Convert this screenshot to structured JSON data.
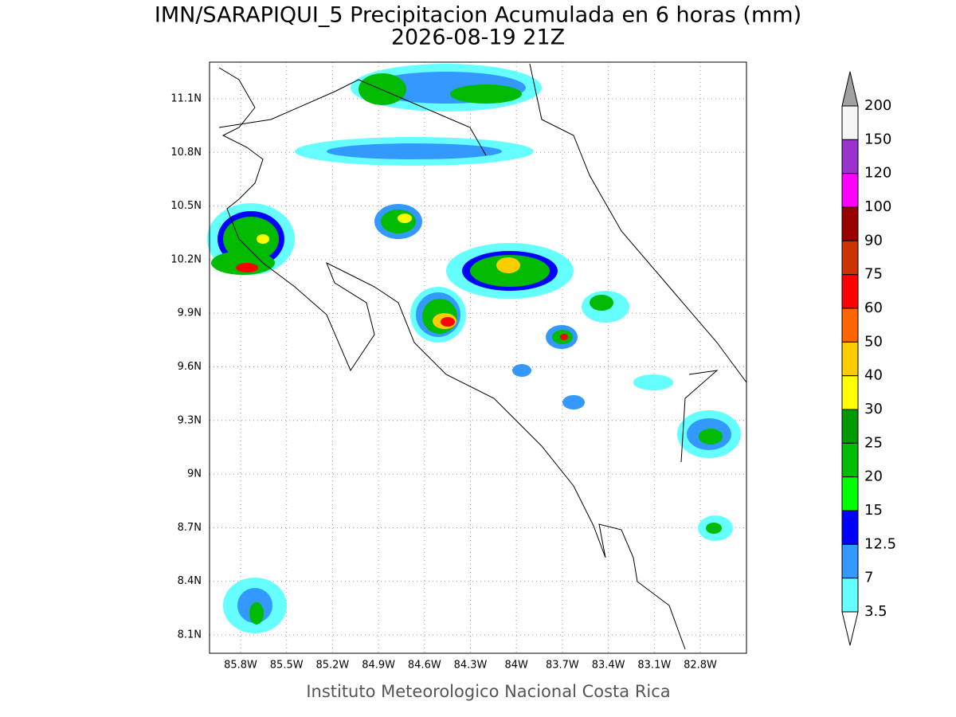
{
  "title": "IMN/SARAPIQUI_5 Precipitacion Acumulada en 6 horas (mm)",
  "subtitle": "2026-08-19 21Z",
  "map": {
    "lat_ticks": [
      "11.1N",
      "10.8N",
      "10.5N",
      "10.2N",
      "9.9N",
      "9.6N",
      "9.3N",
      "9N",
      "8.7N",
      "8.4N",
      "8.1N"
    ],
    "lon_ticks": [
      "85.8W",
      "85.5W",
      "85.2W",
      "84.9W",
      "84.6W",
      "84.3W",
      "84W",
      "83.7W",
      "83.4W",
      "83.1W",
      "82.8W"
    ]
  },
  "colorbar": {
    "labels": [
      200,
      150,
      120,
      100,
      90,
      75,
      60,
      50,
      40,
      30,
      25,
      20,
      15,
      12.5,
      7,
      3.5
    ],
    "colors": [
      "#a0a0a0",
      "#f5f5f5",
      "#9933cc",
      "#ff00ff",
      "#990000",
      "#cc3300",
      "#ff0000",
      "#ff6600",
      "#ffcc00",
      "#ffff00",
      "#009900",
      "#00bb00",
      "#00ff00",
      "#0000ff",
      "#3399ff",
      "#66ffff",
      "#ffffff"
    ]
  },
  "footer": "Instituto Meteorologico Nacional Costa Rica"
}
